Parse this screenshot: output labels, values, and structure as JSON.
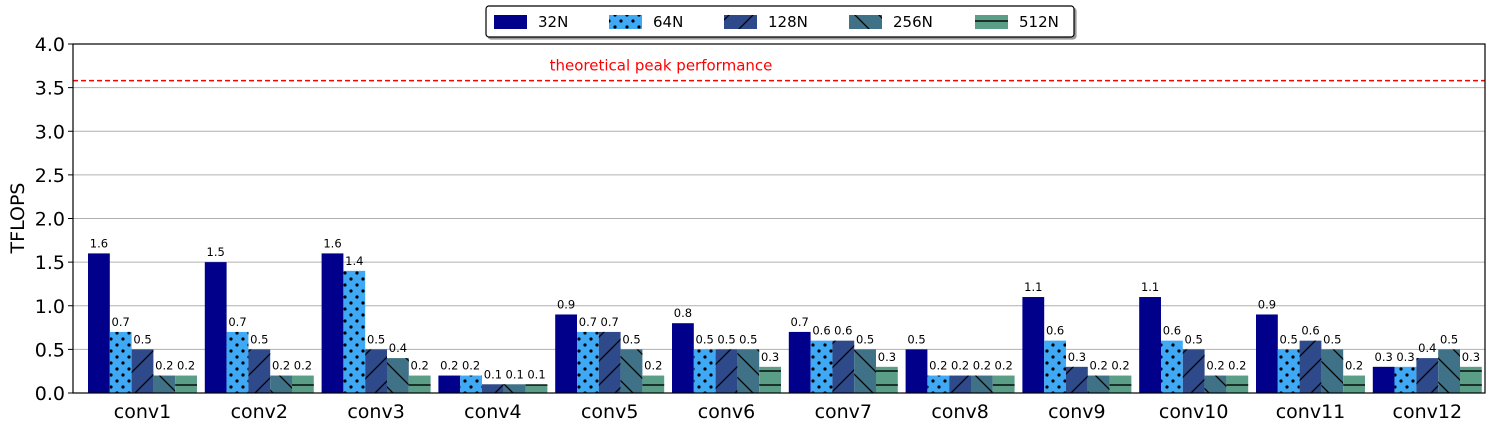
{
  "chart_data": {
    "type": "bar",
    "categories": [
      "conv1",
      "conv2",
      "conv3",
      "conv4",
      "conv5",
      "conv6",
      "conv7",
      "conv8",
      "conv9",
      "conv10",
      "conv11",
      "conv12"
    ],
    "series": [
      {
        "name": "32N",
        "values": [
          1.6,
          1.5,
          1.6,
          0.2,
          0.9,
          0.8,
          0.7,
          0.5,
          1.1,
          1.1,
          0.9,
          0.3
        ],
        "color": "#00008b",
        "pattern": "solid"
      },
      {
        "name": "64N",
        "values": [
          0.7,
          0.7,
          1.4,
          0.2,
          0.7,
          0.5,
          0.6,
          0.2,
          0.6,
          0.6,
          0.5,
          0.3
        ],
        "color": "#3fa9f5",
        "pattern": "dots"
      },
      {
        "name": "128N",
        "values": [
          0.5,
          0.5,
          0.5,
          0.1,
          0.7,
          0.5,
          0.6,
          0.2,
          0.3,
          0.5,
          0.6,
          0.4
        ],
        "color": "#2e4a8a",
        "pattern": "slash"
      },
      {
        "name": "256N",
        "values": [
          0.2,
          0.2,
          0.4,
          0.1,
          0.5,
          0.5,
          0.5,
          0.2,
          0.2,
          0.2,
          0.5,
          0.5
        ],
        "color": "#3f7187",
        "pattern": "backslash"
      },
      {
        "name": "512N",
        "values": [
          0.2,
          0.2,
          0.2,
          0.1,
          0.2,
          0.3,
          0.3,
          0.2,
          0.2,
          0.2,
          0.2,
          0.3
        ],
        "color": "#5b9e88",
        "pattern": "hline"
      }
    ],
    "data_labels": [
      [
        "1.6",
        "0.7",
        "0.5",
        "0.2",
        "0.2"
      ],
      [
        "1.5",
        "0.7",
        "0.5",
        "0.2",
        "0.2"
      ],
      [
        "1.6",
        "1.4",
        "0.5",
        "0.4",
        "0.2"
      ],
      [
        "0.2",
        "0.2",
        "0.1",
        "0.1",
        "0.1"
      ],
      [
        "0.9",
        "0.7",
        "0.7",
        "0.5",
        "0.2"
      ],
      [
        "0.8",
        "0.5",
        "0.5",
        "0.5",
        "0.3"
      ],
      [
        "0.7",
        "0.6",
        "0.6",
        "0.5",
        "0.3"
      ],
      [
        "0.5",
        "0.2",
        "0.2",
        "0.2",
        "0.2"
      ],
      [
        "1.1",
        "0.6",
        "0.3",
        "0.2",
        "0.2"
      ],
      [
        "1.1",
        "0.6",
        "0.5",
        "0.2",
        "0.2"
      ],
      [
        "0.9",
        "0.5",
        "0.6",
        "0.5",
        "0.2"
      ],
      [
        "0.3",
        "0.3",
        "0.4",
        "0.5",
        "0.3"
      ]
    ],
    "title": "",
    "xlabel": "",
    "ylabel": "TFLOPS",
    "ylim": [
      0,
      4.0
    ],
    "yticks": [
      0.0,
      0.5,
      1.0,
      1.5,
      2.0,
      2.5,
      3.0,
      3.5,
      4.0
    ],
    "ytick_labels": [
      "0.0",
      "0.5",
      "1.0",
      "1.5",
      "2.0",
      "2.5",
      "3.0",
      "3.5",
      "4.0"
    ],
    "grid": "horizontal",
    "legend": "top-center",
    "reference_line": {
      "value": 3.58,
      "label": "theoretical peak performance",
      "color": "#ff0000",
      "style": "dashed"
    }
  }
}
